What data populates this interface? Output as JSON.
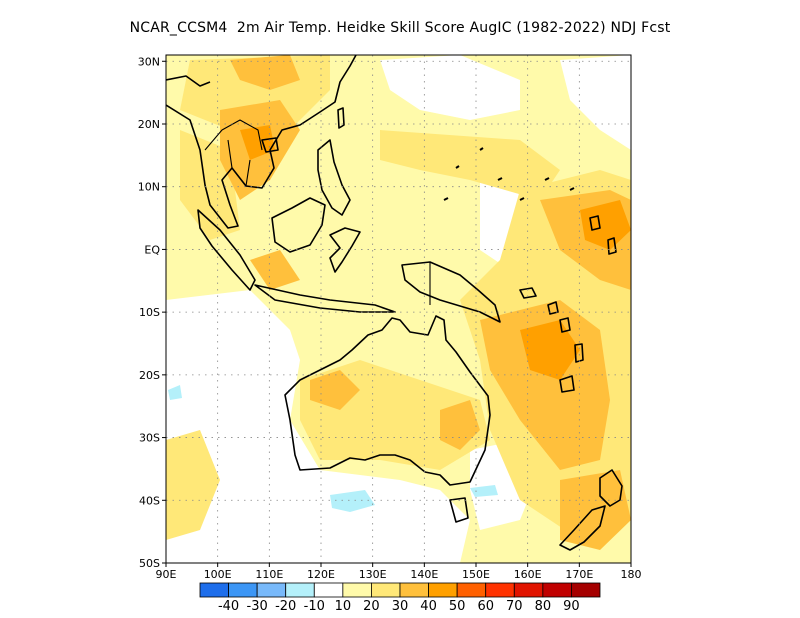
{
  "title": "NCAR_CCSM4  2m Air Temp. Heidke Skill Score AugIC (1982-2022) NDJ Fcst",
  "map": {
    "lon_range": [
      90,
      180
    ],
    "lat_range": [
      -50,
      31
    ],
    "lat_ticks": [
      {
        "value": 30,
        "label": "30N"
      },
      {
        "value": 20,
        "label": "20N"
      },
      {
        "value": 10,
        "label": "10N"
      },
      {
        "value": 0,
        "label": "EQ"
      },
      {
        "value": -10,
        "label": "10S"
      },
      {
        "value": -20,
        "label": "20S"
      },
      {
        "value": -30,
        "label": "30S"
      },
      {
        "value": -40,
        "label": "40S"
      },
      {
        "value": -50,
        "label": "50S"
      }
    ],
    "lon_ticks": [
      {
        "value": 90,
        "label": "90E"
      },
      {
        "value": 100,
        "label": "100E"
      },
      {
        "value": 110,
        "label": "110E"
      },
      {
        "value": 120,
        "label": "120E"
      },
      {
        "value": 130,
        "label": "130E"
      },
      {
        "value": 140,
        "label": "140E"
      },
      {
        "value": 150,
        "label": "150E"
      },
      {
        "value": 160,
        "label": "160E"
      },
      {
        "value": 170,
        "label": "170E"
      },
      {
        "value": 180,
        "label": "180"
      }
    ],
    "grid_lines": true
  },
  "colorbar": {
    "colors": [
      "#1e6eeb",
      "#3c96f5",
      "#78b9fa",
      "#b4f0fa",
      "#ffffff",
      "#fffaaa",
      "#ffe878",
      "#ffc03c",
      "#ffa000",
      "#ff6000",
      "#ff3200",
      "#e11400",
      "#c00000",
      "#a50000"
    ],
    "labels": [
      "-40",
      "-30",
      "-20",
      "-10",
      "10",
      "20",
      "30",
      "40",
      "50",
      "60",
      "70",
      "80",
      "90"
    ]
  }
}
